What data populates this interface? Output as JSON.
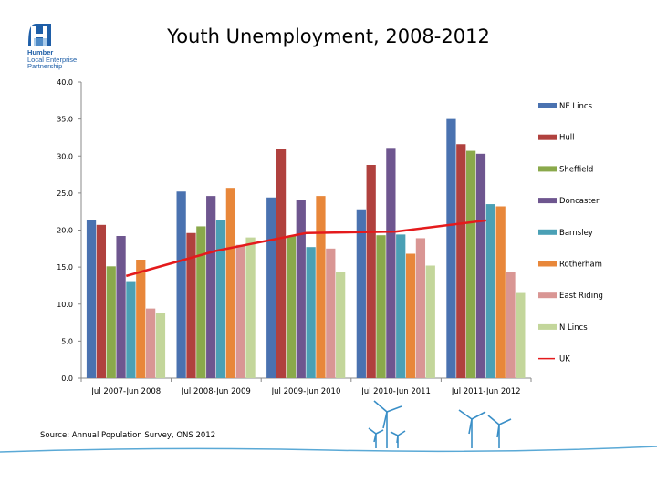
{
  "logo": {
    "line1": "Humber",
    "line2": "Local Enterprise",
    "line3": "Partnership"
  },
  "footer": {
    "source": "Source: Annual Population Survey, ONS 2012"
  },
  "chart_data": {
    "type": "bar",
    "title": "Youth Unemployment, 2008-2012",
    "categories": [
      "Jul 2007-Jun 2008",
      "Jul 2008-Jun 2009",
      "Jul 2009-Jun 2010",
      "Jul 2010-Jun 2011",
      "Jul 2011-Jun 2012"
    ],
    "ylim": [
      0,
      40
    ],
    "yticks": [
      "0.0",
      "5.0",
      "10.0",
      "15.0",
      "20.0",
      "25.0",
      "30.0",
      "35.0",
      "40.0"
    ],
    "grid": false,
    "legend_position": "right",
    "series": [
      {
        "name": "NE Lincs",
        "color": "#4a72b0",
        "values": [
          21.4,
          25.2,
          24.4,
          22.8,
          35.0
        ]
      },
      {
        "name": "Hull",
        "color": "#b0413e",
        "values": [
          20.7,
          19.6,
          30.9,
          28.8,
          31.6
        ]
      },
      {
        "name": "Sheffield",
        "color": "#8aa94b",
        "values": [
          15.1,
          20.5,
          19.2,
          19.3,
          30.7
        ]
      },
      {
        "name": "Doncaster",
        "color": "#6e568f",
        "values": [
          19.2,
          24.6,
          24.1,
          31.1,
          30.3
        ]
      },
      {
        "name": "Barnsley",
        "color": "#4aa0b5",
        "values": [
          13.1,
          21.4,
          17.7,
          19.4,
          23.5
        ]
      },
      {
        "name": "Rotherham",
        "color": "#e8873a",
        "values": [
          16.0,
          25.7,
          24.6,
          16.8,
          23.2
        ]
      },
      {
        "name": "East Riding",
        "color": "#d99694",
        "values": [
          9.4,
          18.0,
          17.5,
          18.9,
          14.4
        ]
      },
      {
        "name": "N Lincs",
        "color": "#c3d69b",
        "values": [
          8.8,
          19.0,
          14.3,
          15.2,
          11.5
        ]
      },
      {
        "name": "UK",
        "color": "#e41a1c",
        "type": "line",
        "values": [
          13.8,
          17.2,
          19.6,
          19.8,
          21.3
        ]
      }
    ]
  }
}
